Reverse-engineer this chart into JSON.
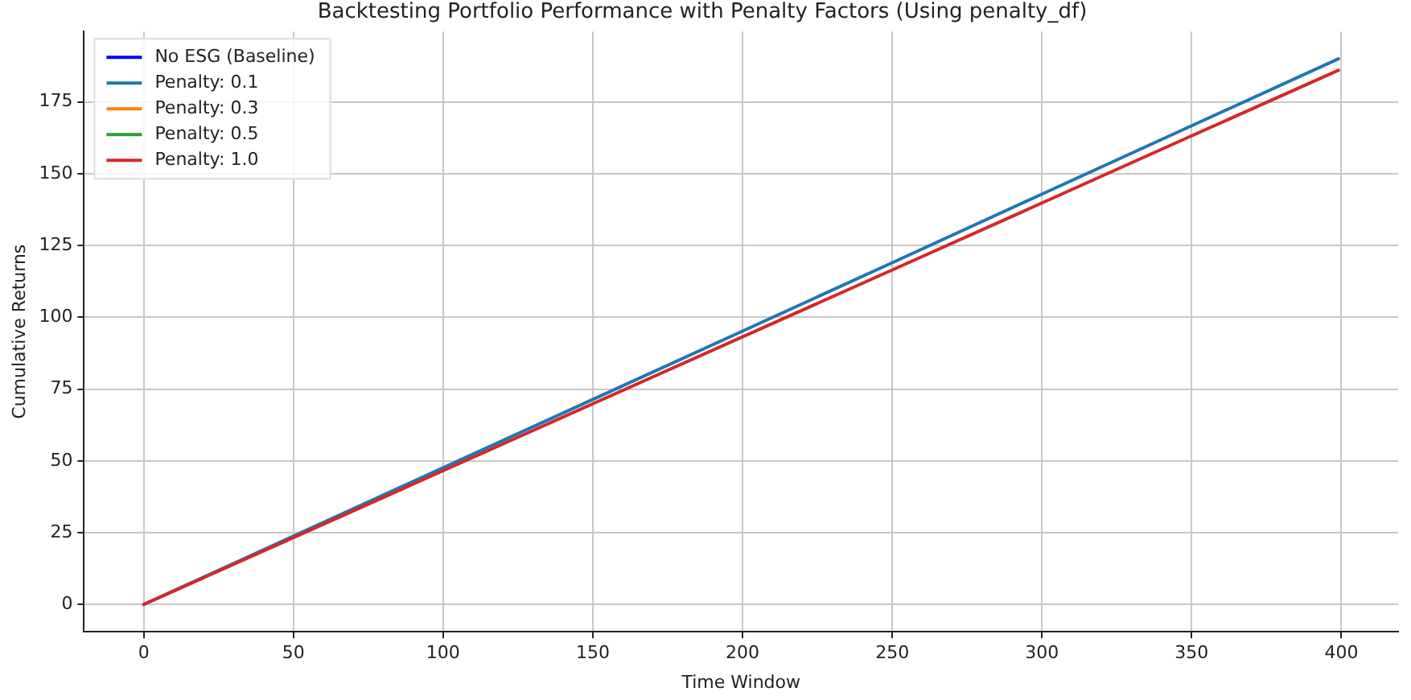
{
  "chart_data": {
    "type": "line",
    "title": "Backtesting Portfolio Performance with Penalty Factors (Using penalty_df)",
    "xlabel": "Time Window",
    "ylabel": "Cumulative Returns",
    "x": [
      0,
      50,
      100,
      150,
      200,
      250,
      300,
      350,
      399
    ],
    "series": [
      {
        "name": "No ESG (Baseline)",
        "color": "#0000ff",
        "values": [
          null,
          null,
          null,
          null,
          null,
          null,
          null,
          null,
          null
        ]
      },
      {
        "name": "Penalty: 0.1",
        "color": "#1f77b4",
        "values": [
          0,
          23.8,
          47.6,
          71.4,
          95.2,
          119,
          142.9,
          166.7,
          190
        ]
      },
      {
        "name": "Penalty: 0.3",
        "color": "#ff7f0e",
        "values": [
          null,
          null,
          null,
          null,
          null,
          null,
          null,
          null,
          null
        ]
      },
      {
        "name": "Penalty: 0.5",
        "color": "#2ca02c",
        "values": [
          null,
          null,
          null,
          null,
          null,
          null,
          null,
          null,
          null
        ]
      },
      {
        "name": "Penalty: 1.0",
        "color": "#d62728",
        "values": [
          0,
          23.3,
          46.6,
          69.9,
          93.2,
          116.5,
          139.8,
          163.2,
          186
        ]
      }
    ],
    "xlim": [
      -19.95,
      418.95
    ],
    "ylim": [
      -9.5,
      199.5
    ],
    "xticks": [
      0,
      50,
      100,
      150,
      200,
      250,
      300,
      350,
      400
    ],
    "yticks": [
      0,
      25,
      50,
      75,
      100,
      125,
      150,
      175
    ],
    "grid": true,
    "legend": "top left",
    "marker": "none",
    "line_style": "solid"
  }
}
